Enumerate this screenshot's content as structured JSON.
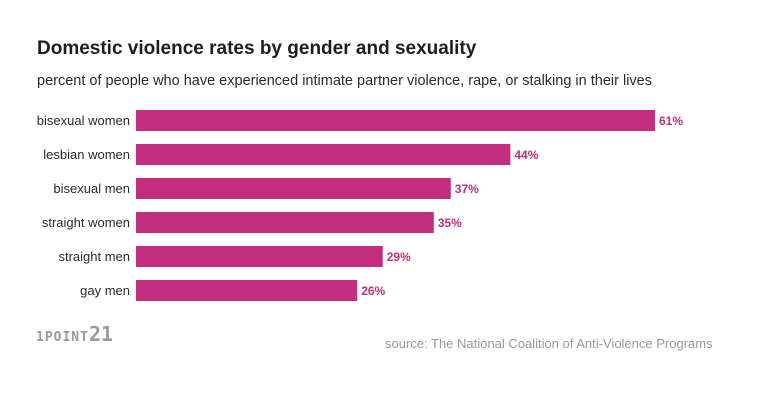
{
  "logo": {
    "text_small": "1POINT",
    "text_big": "21"
  },
  "source": "source: The National Coalition of Anti-Violence Programs",
  "colors": {
    "bar": "#c22d7e",
    "value_label": "#c22d7e"
  },
  "chart_data": {
    "type": "bar",
    "orientation": "horizontal",
    "title": "Domestic violence rates by gender and sexuality",
    "subtitle": "percent of people who have experienced intimate partner violence, rape, or stalking in their lives",
    "categories": [
      "bisexual women",
      "lesbian women",
      "bisexual men",
      "straight women",
      "straight men",
      "gay men"
    ],
    "values": [
      61,
      44,
      37,
      35,
      29,
      26
    ],
    "value_labels": [
      "61%",
      "44%",
      "37%",
      "35%",
      "29%",
      "26%"
    ],
    "xlabel": "",
    "ylabel": "",
    "xlim": [
      0,
      61
    ],
    "grid": false
  }
}
